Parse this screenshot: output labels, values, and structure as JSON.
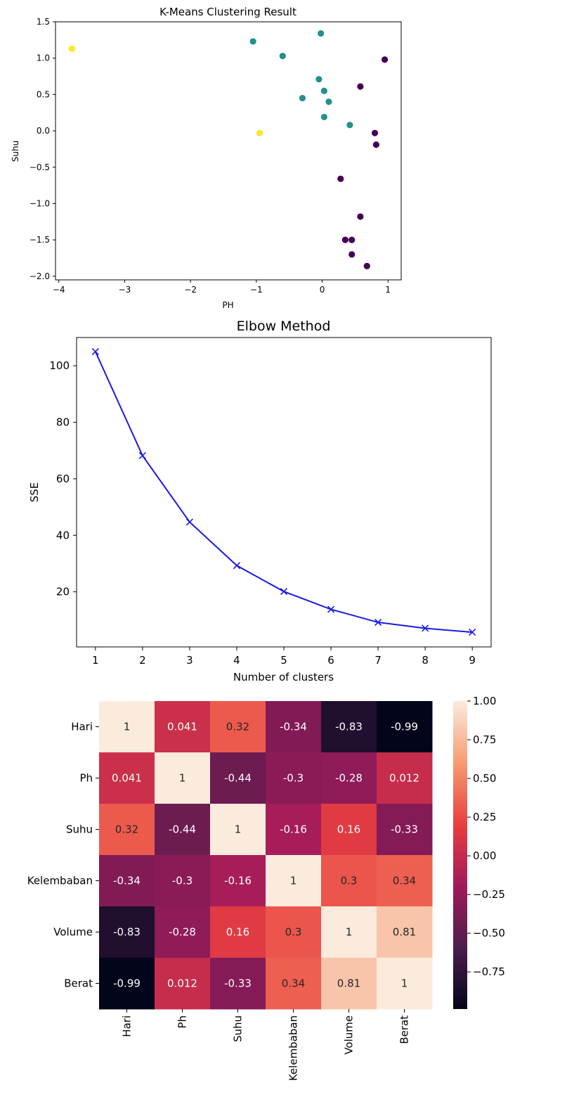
{
  "chart_data": [
    {
      "type": "scatter",
      "title": "K-Means Clustering Result",
      "xlabel": "PH",
      "ylabel": "Suhu",
      "xlim": [
        -4.05,
        1.2
      ],
      "ylim": [
        -2.05,
        1.5
      ],
      "xticks": [
        "−4",
        "−3",
        "−2",
        "−1",
        "0",
        "1"
      ],
      "xtick_values": [
        -4,
        -3,
        -2,
        -1,
        0,
        1
      ],
      "yticks": [
        "1.5",
        "1.0",
        "0.5",
        "0.0",
        "−0.5",
        "−1.0",
        "−1.5",
        "−2.0"
      ],
      "ytick_values": [
        1.5,
        1.0,
        0.5,
        0.0,
        -0.5,
        -1.0,
        -1.5,
        -2.0
      ],
      "grid": false,
      "cluster_colors": [
        "#440154",
        "#21918c",
        "#fde725"
      ],
      "points": [
        {
          "x": -3.8,
          "y": 1.13,
          "cluster": 2
        },
        {
          "x": -0.95,
          "y": -0.03,
          "cluster": 2
        },
        {
          "x": -1.05,
          "y": 1.23,
          "cluster": 1
        },
        {
          "x": -0.6,
          "y": 1.03,
          "cluster": 1
        },
        {
          "x": -0.02,
          "y": 1.34,
          "cluster": 1
        },
        {
          "x": -0.05,
          "y": 0.71,
          "cluster": 1
        },
        {
          "x": 0.03,
          "y": 0.55,
          "cluster": 1
        },
        {
          "x": -0.3,
          "y": 0.45,
          "cluster": 1
        },
        {
          "x": 0.1,
          "y": 0.4,
          "cluster": 1
        },
        {
          "x": 0.03,
          "y": 0.19,
          "cluster": 1
        },
        {
          "x": 0.42,
          "y": 0.08,
          "cluster": 1
        },
        {
          "x": 0.95,
          "y": 0.98,
          "cluster": 0
        },
        {
          "x": 0.58,
          "y": 0.61,
          "cluster": 0
        },
        {
          "x": 0.8,
          "y": -0.03,
          "cluster": 0
        },
        {
          "x": 0.82,
          "y": -0.19,
          "cluster": 0
        },
        {
          "x": 0.28,
          "y": -0.66,
          "cluster": 0
        },
        {
          "x": 0.58,
          "y": -1.18,
          "cluster": 0
        },
        {
          "x": 0.35,
          "y": -1.5,
          "cluster": 0
        },
        {
          "x": 0.45,
          "y": -1.5,
          "cluster": 0
        },
        {
          "x": 0.45,
          "y": -1.7,
          "cluster": 0
        },
        {
          "x": 0.68,
          "y": -1.86,
          "cluster": 0
        }
      ]
    },
    {
      "type": "line",
      "title": "Elbow Method",
      "xlabel": "Number of clusters",
      "ylabel": "SSE",
      "x": [
        1,
        2,
        3,
        4,
        5,
        6,
        7,
        8,
        9
      ],
      "values": [
        105,
        68.2,
        44.7,
        29.3,
        20.1,
        13.8,
        9.2,
        7.1,
        5.7
      ],
      "xlim": [
        0.6,
        9.4
      ],
      "ylim": [
        0.5,
        110
      ],
      "xticks": [
        "1",
        "2",
        "3",
        "4",
        "5",
        "6",
        "7",
        "8",
        "9"
      ],
      "xtick_values": [
        1,
        2,
        3,
        4,
        5,
        6,
        7,
        8,
        9
      ],
      "yticks": [
        "20",
        "40",
        "60",
        "80",
        "100"
      ],
      "ytick_values": [
        20,
        40,
        60,
        80,
        100
      ],
      "marker": "x",
      "color": "#1a1ae6",
      "grid": false
    },
    {
      "type": "heatmap",
      "labels": [
        "Hari",
        "Ph",
        "Suhu",
        "Kelembaban",
        "Volume",
        "Berat"
      ],
      "value_labels": [
        [
          "1",
          "0.041",
          "0.32",
          "-0.34",
          "-0.83",
          "-0.99"
        ],
        [
          "0.041",
          "1",
          "-0.44",
          "-0.3",
          "-0.28",
          "0.012"
        ],
        [
          "0.32",
          "-0.44",
          "1",
          "-0.16",
          "0.16",
          "-0.33"
        ],
        [
          "-0.34",
          "-0.3",
          "-0.16",
          "1",
          "0.3",
          "0.34"
        ],
        [
          "-0.83",
          "-0.28",
          "0.16",
          "0.3",
          "1",
          "0.81"
        ],
        [
          "-0.99",
          "0.012",
          "-0.33",
          "0.34",
          "0.81",
          "1"
        ]
      ],
      "values": [
        [
          1,
          0.041,
          0.32,
          -0.34,
          -0.83,
          -0.99
        ],
        [
          0.041,
          1,
          -0.44,
          -0.3,
          -0.28,
          0.012
        ],
        [
          0.32,
          -0.44,
          1,
          -0.16,
          0.16,
          -0.33
        ],
        [
          -0.34,
          -0.3,
          -0.16,
          1,
          0.3,
          0.34
        ],
        [
          -0.83,
          -0.28,
          0.16,
          0.3,
          1,
          0.81
        ],
        [
          -0.99,
          0.012,
          -0.33,
          0.34,
          0.81,
          1
        ]
      ],
      "colorbar_range": [
        -0.99,
        1.0
      ],
      "colorbar_ticks": [
        "1.00",
        "0.75",
        "0.50",
        "0.25",
        "0.00",
        "−0.25",
        "−0.50",
        "−0.75"
      ],
      "colorbar_tick_values": [
        1.0,
        0.75,
        0.5,
        0.25,
        0.0,
        -0.25,
        -0.5,
        -0.75
      ],
      "colormap": "rocket",
      "colormap_stops": [
        "#03051a",
        "#4c1d4b",
        "#a11a5b",
        "#e83f3f",
        "#f69c73",
        "#faebdd"
      ]
    }
  ]
}
